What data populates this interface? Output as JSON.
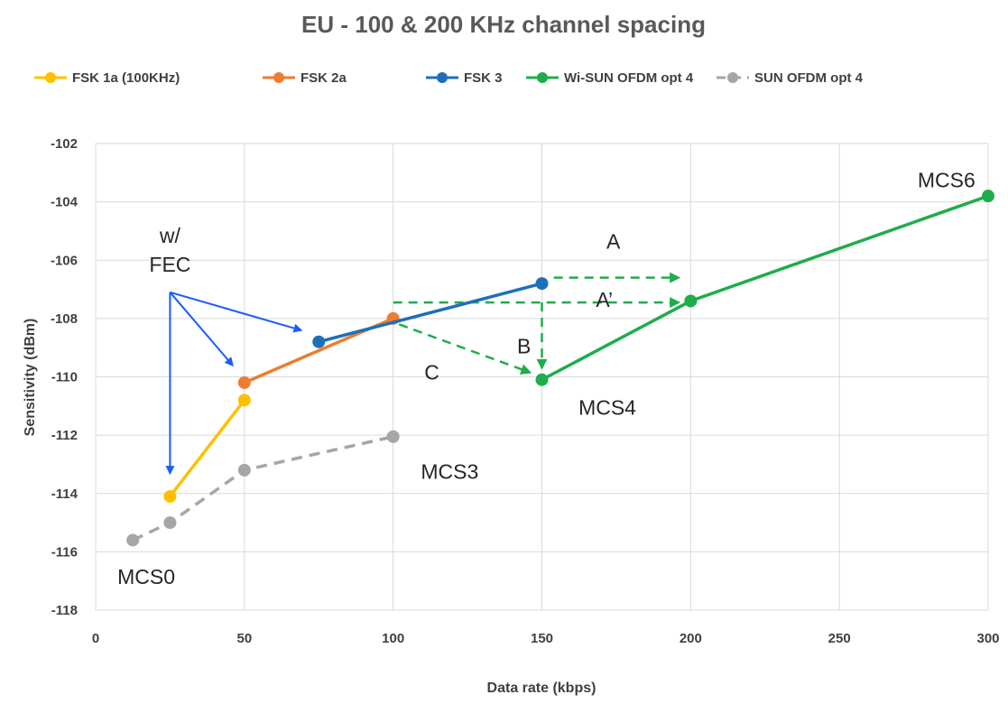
{
  "chart_data": {
    "type": "line",
    "title": "EU - 100 & 200 KHz channel spacing",
    "xlabel": "Data rate (kbps)",
    "ylabel": "Sensitivity (dBm)",
    "xlim": [
      0,
      300
    ],
    "ylim": [
      -118,
      -102
    ],
    "xticks": [
      0,
      50,
      100,
      150,
      200,
      250,
      300
    ],
    "yticks": [
      -102,
      -104,
      -106,
      -108,
      -110,
      -112,
      -114,
      -116,
      -118
    ],
    "grid": true,
    "legend_position": "top",
    "series": [
      {
        "name": "FSK 1a (100KHz)",
        "color": "#FFC000",
        "dashed": false,
        "points": [
          {
            "x": 25,
            "y": -114.1
          },
          {
            "x": 50,
            "y": -110.8
          }
        ]
      },
      {
        "name": "FSK 2a",
        "color": "#ED7D31",
        "dashed": false,
        "points": [
          {
            "x": 50,
            "y": -110.2
          },
          {
            "x": 100,
            "y": -108
          }
        ]
      },
      {
        "name": "FSK 3",
        "color": "#1F6FB8",
        "dashed": false,
        "points": [
          {
            "x": 75,
            "y": -108.8
          },
          {
            "x": 150,
            "y": -106.8
          }
        ]
      },
      {
        "name": "Wi-SUN OFDM opt 4",
        "color": "#1FAD4B",
        "dashed": false,
        "points": [
          {
            "x": 150,
            "y": -110.1
          },
          {
            "x": 200,
            "y": -107.4
          },
          {
            "x": 300,
            "y": -103.8
          }
        ]
      },
      {
        "name": "SUN OFDM opt 4",
        "color": "#A6A6A6",
        "dashed": true,
        "points": [
          {
            "x": 12.5,
            "y": -115.6
          },
          {
            "x": 25,
            "y": -115
          },
          {
            "x": 50,
            "y": -113.2
          },
          {
            "x": 100,
            "y": -112.05
          }
        ]
      }
    ],
    "annotations": {
      "texts": [
        {
          "text": "w/",
          "x": 25,
          "y": -105.4
        },
        {
          "text": "FEC",
          "x": 25,
          "y": -106.4
        },
        {
          "text": "A",
          "x": 174,
          "y": -105.6
        },
        {
          "text": "A’",
          "x": 171,
          "y": -107.6
        },
        {
          "text": "B",
          "x": 144,
          "y": -109.2
        },
        {
          "text": "C",
          "x": 113,
          "y": -110.1
        },
        {
          "text": "MCS0",
          "x": 17,
          "y": -117.1
        },
        {
          "text": "MCS3",
          "x": 119,
          "y": -113.5
        },
        {
          "text": "MCS4",
          "x": 172,
          "y": -111.3
        },
        {
          "text": "MCS6",
          "x": 286,
          "y": -103.5
        }
      ],
      "blue_arrows": [
        {
          "x1": 25,
          "y1": -107.1,
          "x2": 25,
          "y2": -113.3
        },
        {
          "x1": 25,
          "y1": -107.1,
          "x2": 46,
          "y2": -109.6
        },
        {
          "x1": 25,
          "y1": -107.1,
          "x2": 69,
          "y2": -108.4
        }
      ],
      "green_dashed_arrows": [
        {
          "x1": 154,
          "y1": -106.6,
          "x2": 196,
          "y2": -106.6
        },
        {
          "x1": 100,
          "y1": -107.45,
          "x2": 196,
          "y2": -107.45
        },
        {
          "x1": 150,
          "y1": -107.45,
          "x2": 150,
          "y2": -109.7
        },
        {
          "x1": 102,
          "y1": -108.2,
          "x2": 146,
          "y2": -109.85
        }
      ]
    }
  }
}
